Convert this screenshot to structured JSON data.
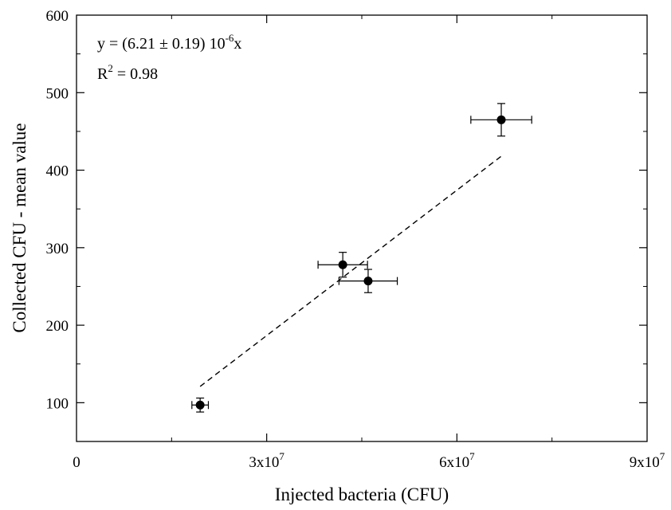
{
  "chart_data": {
    "type": "scatter",
    "title": "",
    "xlabel": "Injected bacteria (CFU)",
    "ylabel": "Collected CFU - mean value",
    "xlim": [
      0,
      90000000
    ],
    "ylim": [
      50,
      600
    ],
    "x_ticks": [
      {
        "value": 0,
        "base": "0",
        "exp": ""
      },
      {
        "value": 30000000,
        "base": "3x10",
        "exp": "7"
      },
      {
        "value": 60000000,
        "base": "6x10",
        "exp": "7"
      },
      {
        "value": 90000000,
        "base": "9x10",
        "exp": "7"
      }
    ],
    "x_minor_ticks": [
      15000000,
      45000000,
      75000000
    ],
    "y_ticks": [
      100,
      200,
      300,
      400,
      500,
      600
    ],
    "y_minor_ticks": [
      50,
      150,
      250,
      350,
      450,
      550
    ],
    "grid": false,
    "series": [
      {
        "points": [
          {
            "x": 19500000,
            "y": 97,
            "x_err": 1300000,
            "y_err": 9
          },
          {
            "x": 42000000,
            "y": 278,
            "x_err": 3900000,
            "y_err": 16
          },
          {
            "x": 46000000,
            "y": 257,
            "x_err": 4600000,
            "y_err": 15
          },
          {
            "x": 67000000,
            "y": 465,
            "x_err": 4800000,
            "y_err": 21
          }
        ],
        "color": "#000000"
      }
    ],
    "fit": {
      "style": "dashed",
      "color": "#000000",
      "x_range": [
        19500000,
        67000000
      ],
      "y_range": [
        121,
        418
      ]
    },
    "annotations": {
      "equation_prefix": "y = (6.21 ± 0.19) 10",
      "equation_exp": "-6",
      "equation_suffix": "x",
      "r2_prefix": "R",
      "r2_exp": "2",
      "r2_suffix": " = 0.98"
    }
  }
}
